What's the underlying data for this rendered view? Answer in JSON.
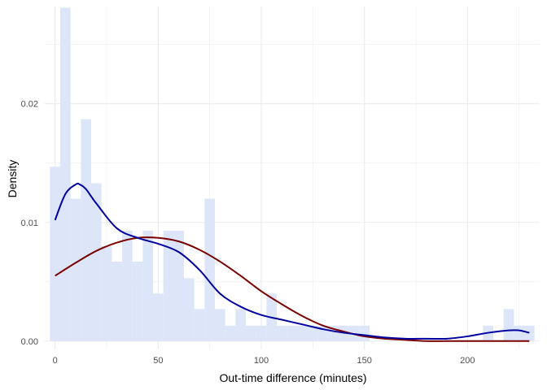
{
  "chart_data": {
    "type": "histogram-density",
    "xlabel": "Out-time difference (minutes)",
    "ylabel": "Density",
    "xlim": [
      -5,
      235
    ],
    "ylim": [
      -0.0007,
      0.0282
    ],
    "x_ticks": [
      0,
      50,
      100,
      150,
      200
    ],
    "x_tick_labels": [
      "0",
      "50",
      "100",
      "150",
      "200"
    ],
    "y_ticks": [
      0.0,
      0.01,
      0.02
    ],
    "y_tick_labels": [
      "0.00",
      "0.01",
      "0.02"
    ],
    "grid": true,
    "colors": {
      "histogram_fill": "#dce6f8",
      "empirical_density": "#0000a0",
      "fitted_density": "#7a0000",
      "grid": "#ebebeb"
    },
    "histogram": {
      "bin_width": 5,
      "bin_starts": [
        -2.5,
        2.5,
        7.5,
        12.5,
        17.5,
        22.5,
        27.5,
        32.5,
        37.5,
        42.5,
        47.5,
        52.5,
        57.5,
        62.5,
        67.5,
        72.5,
        77.5,
        82.5,
        87.5,
        92.5,
        97.5,
        102.5,
        107.5,
        112.5,
        117.5,
        122.5,
        127.5,
        132.5,
        137.5,
        142.5,
        147.5,
        152.5,
        157.5,
        162.5,
        167.5,
        172.5,
        177.5,
        182.5,
        187.5,
        192.5,
        197.5,
        202.5,
        207.5,
        212.5,
        217.5,
        222.5,
        227.5
      ],
      "densities": [
        0.0147,
        0.0281,
        0.012,
        0.0187,
        0.0133,
        0.008,
        0.0067,
        0.0093,
        0.0067,
        0.0093,
        0.004,
        0.0093,
        0.0093,
        0.0053,
        0.0027,
        0.012,
        0.0027,
        0.0013,
        0.0027,
        0.0013,
        0.0013,
        0.004,
        0.0013,
        0.0013,
        0.0013,
        0.0013,
        0.0013,
        0.0013,
        0.0013,
        0.0013,
        0.0013,
        0.0,
        0.0,
        0.0,
        0.0,
        0.0,
        0.0,
        0.0,
        0.0,
        0.0,
        0.0,
        0.0,
        0.0013,
        0.0,
        0.0027,
        0.0013,
        0.0013
      ]
    },
    "series": [
      {
        "x": [
          0,
          5,
          10,
          12,
          15,
          20,
          30,
          40,
          50,
          60,
          70,
          80,
          90,
          100,
          110,
          120,
          130,
          140,
          150,
          160,
          170,
          180,
          190,
          200,
          210,
          220,
          225,
          230
        ],
        "y": [
          0.0102,
          0.0124,
          0.0132,
          0.0132,
          0.0128,
          0.0116,
          0.0095,
          0.0087,
          0.0082,
          0.0075,
          0.006,
          0.004,
          0.0029,
          0.0022,
          0.0018,
          0.0014,
          0.001,
          0.0007,
          0.0005,
          0.0003,
          0.0002,
          0.0002,
          0.0002,
          0.0004,
          0.0007,
          0.0009,
          0.0009,
          0.0007
        ]
      },
      {
        "x": [
          0,
          10,
          20,
          30,
          40,
          50,
          60,
          70,
          80,
          90,
          100,
          110,
          120,
          130,
          140,
          150,
          160,
          170,
          180,
          190,
          200,
          210,
          220,
          230
        ],
        "y": [
          0.0055,
          0.0066,
          0.0076,
          0.0083,
          0.0087,
          0.0087,
          0.0084,
          0.0077,
          0.0067,
          0.0055,
          0.0042,
          0.0031,
          0.0021,
          0.0013,
          0.0008,
          0.0004,
          0.0002,
          0.0001,
          0.0,
          0.0,
          0.0,
          0.0,
          0.0,
          0.0
        ]
      }
    ]
  }
}
